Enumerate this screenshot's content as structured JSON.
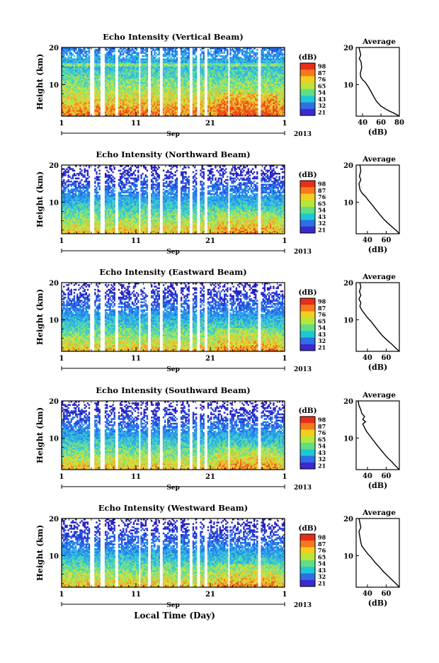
{
  "chart_data": [
    {
      "type": "heatmap",
      "title": "Echo Intensity (Vertical Beam)",
      "ylabel": "Height (km)",
      "yticks": [
        "20",
        "10"
      ],
      "xticks": [
        "1",
        "11",
        "21",
        "1"
      ],
      "month_label": "Sep",
      "year_label": "2013",
      "colorbar_unit": "(dB)",
      "colorbar_levels": [
        "98",
        "87",
        "76",
        "65",
        "54",
        "43",
        "32",
        "21"
      ],
      "xlim": [
        1,
        31
      ],
      "ylim": [
        1.5,
        20
      ],
      "avg_title": "Average",
      "avg_xlabel": "(dB)",
      "avg_xticks": [
        "40",
        "60",
        "80"
      ],
      "avg_xlim": [
        33,
        80
      ],
      "avg_profile": [
        [
          80,
          1.5
        ],
        [
          75,
          2.2
        ],
        [
          68,
          3.0
        ],
        [
          60,
          4.2
        ],
        [
          55,
          5.5
        ],
        [
          52,
          6.8
        ],
        [
          49,
          8.2
        ],
        [
          46,
          9.5
        ],
        [
          43,
          10.6
        ],
        [
          40,
          11.3
        ],
        [
          38,
          12
        ],
        [
          37.5,
          13
        ],
        [
          39,
          14.5
        ],
        [
          38.5,
          16
        ],
        [
          36.5,
          17
        ],
        [
          38,
          18
        ],
        [
          37,
          19
        ],
        [
          36,
          20
        ]
      ]
    },
    {
      "type": "heatmap",
      "title": "Echo Intensity (Northward Beam)",
      "ylabel": "Height (km)",
      "yticks": [
        "20",
        "10"
      ],
      "xticks": [
        "1",
        "11",
        "21",
        "1"
      ],
      "month_label": "Sep",
      "year_label": "2013",
      "colorbar_unit": "(dB)",
      "colorbar_levels": [
        "98",
        "87",
        "76",
        "65",
        "54",
        "43",
        "32",
        "21"
      ],
      "xlim": [
        1,
        31
      ],
      "ylim": [
        1.5,
        20
      ],
      "avg_title": "Average",
      "avg_xlabel": "(dB)",
      "avg_xticks": [
        "40",
        "60"
      ],
      "avg_xlim": [
        28,
        74
      ],
      "avg_profile": [
        [
          74,
          1.5
        ],
        [
          71,
          2.3
        ],
        [
          67,
          3.2
        ],
        [
          62,
          4.3
        ],
        [
          57,
          5.5
        ],
        [
          53,
          6.7
        ],
        [
          49,
          8
        ],
        [
          45,
          9.3
        ],
        [
          41,
          10.5
        ],
        [
          38,
          11.5
        ],
        [
          34,
          12.5
        ],
        [
          32,
          13.5
        ],
        [
          31,
          15
        ],
        [
          33,
          16
        ],
        [
          31.5,
          17
        ],
        [
          33,
          18.5
        ],
        [
          32,
          20
        ]
      ]
    },
    {
      "type": "heatmap",
      "title": "Echo Intensity (Eastward Beam)",
      "ylabel": "Height (km)",
      "yticks": [
        "20",
        "10"
      ],
      "xticks": [
        "1",
        "11",
        "21",
        "1"
      ],
      "month_label": "Sep",
      "year_label": "2013",
      "colorbar_unit": "(dB)",
      "colorbar_levels": [
        "98",
        "87",
        "76",
        "65",
        "54",
        "43",
        "32",
        "21"
      ],
      "xlim": [
        1,
        31
      ],
      "ylim": [
        1.5,
        20
      ],
      "avg_title": "Average",
      "avg_xlabel": "(dB)",
      "avg_xticks": [
        "40",
        "60"
      ],
      "avg_xlim": [
        28,
        74
      ],
      "avg_profile": [
        [
          74,
          1.5
        ],
        [
          70,
          2.4
        ],
        [
          66,
          3.4
        ],
        [
          61,
          4.5
        ],
        [
          56,
          5.7
        ],
        [
          52,
          6.9
        ],
        [
          48,
          8.2
        ],
        [
          44,
          9.5
        ],
        [
          40,
          10.6
        ],
        [
          37,
          11.6
        ],
        [
          34,
          12.6
        ],
        [
          32,
          13.6
        ],
        [
          33,
          14.6
        ],
        [
          31,
          15.6
        ],
        [
          33,
          16.6
        ],
        [
          31.5,
          17.6
        ],
        [
          33,
          18.8
        ],
        [
          32,
          20
        ]
      ]
    },
    {
      "type": "heatmap",
      "title": "Echo Intensity (Southward Beam)",
      "ylabel": "Height (km)",
      "yticks": [
        "20",
        "10"
      ],
      "xticks": [
        "1",
        "11",
        "21",
        "1"
      ],
      "month_label": "Sep",
      "year_label": "2013",
      "colorbar_unit": "(dB)",
      "colorbar_levels": [
        "98",
        "87",
        "76",
        "65",
        "54",
        "43",
        "32",
        "21"
      ],
      "xlim": [
        1,
        31
      ],
      "ylim": [
        1.5,
        20
      ],
      "avg_title": "Average",
      "avg_xlabel": "(dB)",
      "avg_xticks": [
        "40",
        "60"
      ],
      "avg_xlim": [
        28,
        74
      ],
      "avg_profile": [
        [
          74,
          1.5
        ],
        [
          70,
          2.5
        ],
        [
          66,
          3.6
        ],
        [
          61,
          4.8
        ],
        [
          57,
          6
        ],
        [
          53,
          7.2
        ],
        [
          49,
          8.5
        ],
        [
          45,
          9.8
        ],
        [
          42,
          10.8
        ],
        [
          39,
          11.8
        ],
        [
          37,
          12.8
        ],
        [
          35,
          13.8
        ],
        [
          38,
          14.4
        ],
        [
          35,
          15
        ],
        [
          37,
          15.8
        ],
        [
          34,
          16.6
        ],
        [
          33,
          17.6
        ],
        [
          31,
          18.8
        ],
        [
          30,
          20
        ]
      ]
    },
    {
      "type": "heatmap",
      "title": "Echo Intensity (Westward Beam)",
      "ylabel": "Height (km)",
      "yticks": [
        "20",
        "10"
      ],
      "xticks": [
        "1",
        "11",
        "21",
        "1"
      ],
      "month_label": "Sep",
      "year_label": "2013",
      "xlabel": "Local Time (Day)",
      "colorbar_unit": "(dB)",
      "colorbar_levels": [
        "98",
        "87",
        "76",
        "65",
        "54",
        "43",
        "32",
        "21"
      ],
      "xlim": [
        1,
        31
      ],
      "ylim": [
        1.5,
        20
      ],
      "avg_title": "Average",
      "avg_xlabel": "(dB)",
      "avg_xticks": [
        "40",
        "60"
      ],
      "avg_xlim": [
        28,
        74
      ],
      "avg_profile": [
        [
          74,
          1.5
        ],
        [
          71,
          2.3
        ],
        [
          67,
          3.3
        ],
        [
          62,
          4.5
        ],
        [
          57,
          5.7
        ],
        [
          53,
          6.9
        ],
        [
          48,
          8.2
        ],
        [
          44,
          9.5
        ],
        [
          40,
          10.6
        ],
        [
          37,
          11.6
        ],
        [
          34,
          12.6
        ],
        [
          33,
          13.6
        ],
        [
          32,
          15
        ],
        [
          31,
          16.5
        ],
        [
          33,
          17.6
        ],
        [
          32,
          18.8
        ],
        [
          31,
          20
        ]
      ]
    }
  ]
}
